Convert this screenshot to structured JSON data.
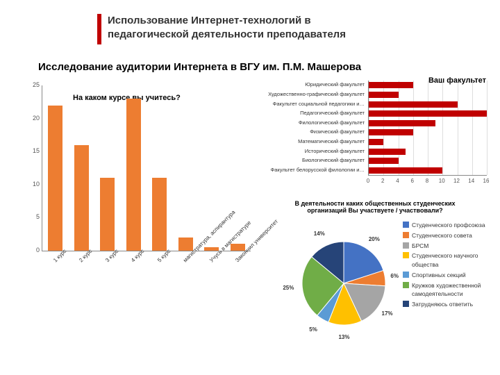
{
  "header": {
    "title_line1": "Использование Интернет-технологий в",
    "title_line2": "педагогической деятельности преподавателя",
    "subtitle": "Исследование аудитории Интернета в ВГУ им. П.М. Машерова",
    "accent_color": "#c00000"
  },
  "bar_chart": {
    "title": "На каком курсе вы учитесь?",
    "type": "bar",
    "ylim": [
      0,
      25
    ],
    "ytick_step": 5,
    "categories": [
      "1 курс",
      "2 курс",
      "3 курс",
      "4 курс",
      "5 курс",
      "магистратура, аспирантура",
      "Учусь в магистратуре",
      "Закончил университет"
    ],
    "values": [
      22,
      16,
      11,
      23,
      11,
      2,
      0.5,
      1
    ],
    "color": "#ed7d31",
    "bar_width": 0.55
  },
  "hbar_chart": {
    "title": "Ваш факультет",
    "type": "hbar",
    "xlim": [
      0,
      16
    ],
    "xtick_step": 2,
    "categories": [
      "Юридический факультет",
      "Художественно-графический факультет",
      "Факультет социальной педагогики и…",
      "Педагогический факультет",
      "Филологический факультет",
      "Физический факультет",
      "Математический факультет",
      "Исторический факультет",
      "Биологический факультет",
      "Факультет белорусской филологии и…"
    ],
    "values": [
      6,
      4,
      12,
      16,
      9,
      6,
      2,
      5,
      4,
      10
    ],
    "color": "#c00000"
  },
  "pie_chart": {
    "title": "В деятельности каких общественных студенческих организаций Вы участвуете / участвовали?",
    "type": "pie",
    "slices": [
      {
        "label": "Студенческого профсоюза",
        "value": 20,
        "color": "#4472c4"
      },
      {
        "label": "Студенческого совета",
        "value": 6,
        "color": "#ed7d31"
      },
      {
        "label": "БРСМ",
        "value": 17,
        "color": "#a5a5a5"
      },
      {
        "label": "Студенческого научного общества",
        "value": 13,
        "color": "#ffc000"
      },
      {
        "label": "Спортивных секций",
        "value": 5,
        "color": "#5b9bd5"
      },
      {
        "label": "Кружков художественной самодеятельности",
        "value": 25,
        "color": "#70ad47"
      },
      {
        "label": "Затрудняюсь ответить",
        "value": 14,
        "color": "#264478"
      }
    ]
  }
}
